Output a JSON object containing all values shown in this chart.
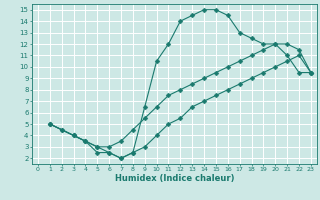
{
  "bg_color": "#cde8e5",
  "grid_color": "#ffffff",
  "line_color": "#1a7a6e",
  "xlabel": "Humidex (Indice chaleur)",
  "xlim": [
    -0.5,
    23.5
  ],
  "ylim": [
    1.5,
    15.5
  ],
  "xticks": [
    0,
    1,
    2,
    3,
    4,
    5,
    6,
    7,
    8,
    9,
    10,
    11,
    12,
    13,
    14,
    15,
    16,
    17,
    18,
    19,
    20,
    21,
    22,
    23
  ],
  "yticks": [
    2,
    3,
    4,
    5,
    6,
    7,
    8,
    9,
    10,
    11,
    12,
    13,
    14,
    15
  ],
  "curve1_x": [
    1,
    2,
    3,
    4,
    5,
    6,
    7,
    8,
    9,
    10,
    11,
    12,
    13,
    14,
    15,
    16,
    17,
    18,
    19,
    20,
    21,
    22,
    23
  ],
  "curve1_y": [
    5,
    4.5,
    4,
    3.5,
    2.5,
    2.5,
    2,
    2.5,
    6.5,
    10.5,
    12.0,
    14.0,
    14.5,
    15.0,
    15.0,
    14.5,
    13.0,
    12.5,
    12.0,
    12.0,
    11.0,
    9.5,
    9.5
  ],
  "curve2_x": [
    1,
    3,
    4,
    5,
    6,
    7,
    8,
    9,
    10,
    11,
    12,
    13,
    14,
    15,
    16,
    17,
    18,
    19,
    20,
    21,
    22,
    23
  ],
  "curve2_y": [
    5,
    4.0,
    3.5,
    3.0,
    3.0,
    3.5,
    4.5,
    5.5,
    6.5,
    7.5,
    8.0,
    8.5,
    9.0,
    9.5,
    10.0,
    10.5,
    11.0,
    11.5,
    12.0,
    12.0,
    11.5,
    9.5
  ],
  "curve3_x": [
    1,
    2,
    3,
    4,
    5,
    6,
    7,
    8,
    9,
    10,
    11,
    12,
    13,
    14,
    15,
    16,
    17,
    18,
    19,
    20,
    21,
    22,
    23
  ],
  "curve3_y": [
    5,
    4.5,
    4.0,
    3.5,
    3.0,
    2.5,
    2.0,
    2.5,
    3.0,
    4.0,
    5.0,
    5.5,
    6.5,
    7.0,
    7.5,
    8.0,
    8.5,
    9.0,
    9.5,
    10.0,
    10.5,
    11.0,
    9.5
  ],
  "markersize": 2.5
}
